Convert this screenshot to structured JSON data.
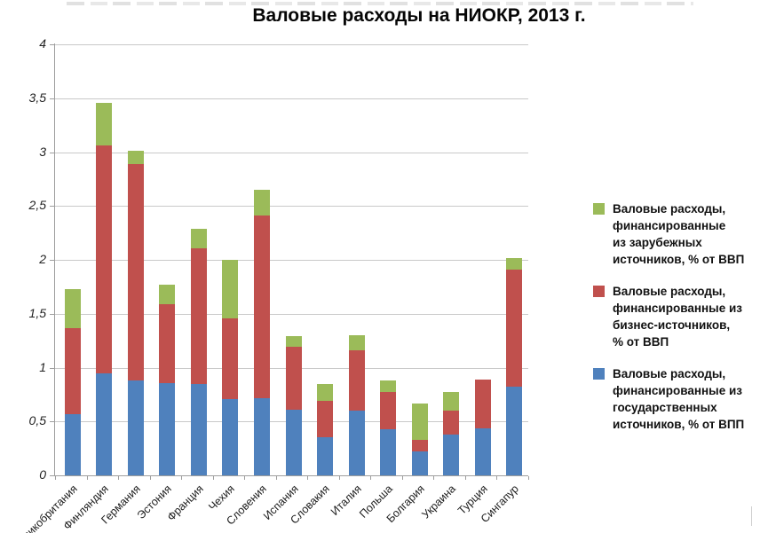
{
  "title": "Валовые расходы на НИОКР, 2013 г.",
  "colors": {
    "government_series": "#4F81BD",
    "business_series": "#C0504D",
    "foreign_series": "#9BBB59",
    "gridline": "#C9C9C9",
    "axis": "#9E9E9E",
    "background": "#FFFFFF"
  },
  "chart_data": {
    "type": "bar",
    "stacked": true,
    "title": "Валовые расходы на НИОКР, 2013 г.",
    "xlabel": "",
    "ylabel": "",
    "ylim": [
      0,
      4
    ],
    "ytick_step": 0.5,
    "ytick_labels": [
      "0",
      "0,5",
      "1",
      "1,5",
      "2",
      "2,5",
      "3",
      "3,5",
      "4"
    ],
    "grid": true,
    "legend_position": "right",
    "categories": [
      "Великобритания",
      "Финляндия",
      "Германия",
      "Эстония",
      "Франция",
      "Чехия",
      "Словения",
      "Испания",
      "Словакия",
      "Италия",
      "Польша",
      "Болгария",
      "Украина",
      "Турция",
      "Сингапур"
    ],
    "series": [
      {
        "key": "government",
        "name": "Валовые расходы,\nфинансированные из\nгосударственных\nисточников, % от ВПП",
        "color": "#4F81BD",
        "values": [
          0.57,
          0.95,
          0.88,
          0.86,
          0.85,
          0.71,
          0.72,
          0.61,
          0.35,
          0.6,
          0.43,
          0.22,
          0.38,
          0.44,
          0.82
        ]
      },
      {
        "key": "business",
        "name": "Валовые расходы,\nфинансированные из\nбизнес-источников,\n% от ВВП",
        "color": "#C0504D",
        "values": [
          0.8,
          2.11,
          2.01,
          0.73,
          1.26,
          0.75,
          1.69,
          0.58,
          0.34,
          0.56,
          0.34,
          0.11,
          0.22,
          0.45,
          1.09
        ]
      },
      {
        "key": "foreign",
        "name": "Валовые расходы,\nфинансированные\nиз зарубежных\nисточников, % от ВВП",
        "color": "#9BBB59",
        "values": [
          0.36,
          0.4,
          0.12,
          0.18,
          0.18,
          0.54,
          0.24,
          0.1,
          0.16,
          0.14,
          0.11,
          0.34,
          0.17,
          0.0,
          0.11
        ]
      }
    ],
    "cumulative_tops_note": "blue/red/green cumulative tops per country",
    "totals": [
      1.73,
      3.46,
      3.01,
      1.77,
      2.29,
      2.0,
      2.65,
      1.29,
      0.85,
      1.3,
      0.88,
      0.67,
      0.77,
      0.89,
      2.02
    ]
  }
}
